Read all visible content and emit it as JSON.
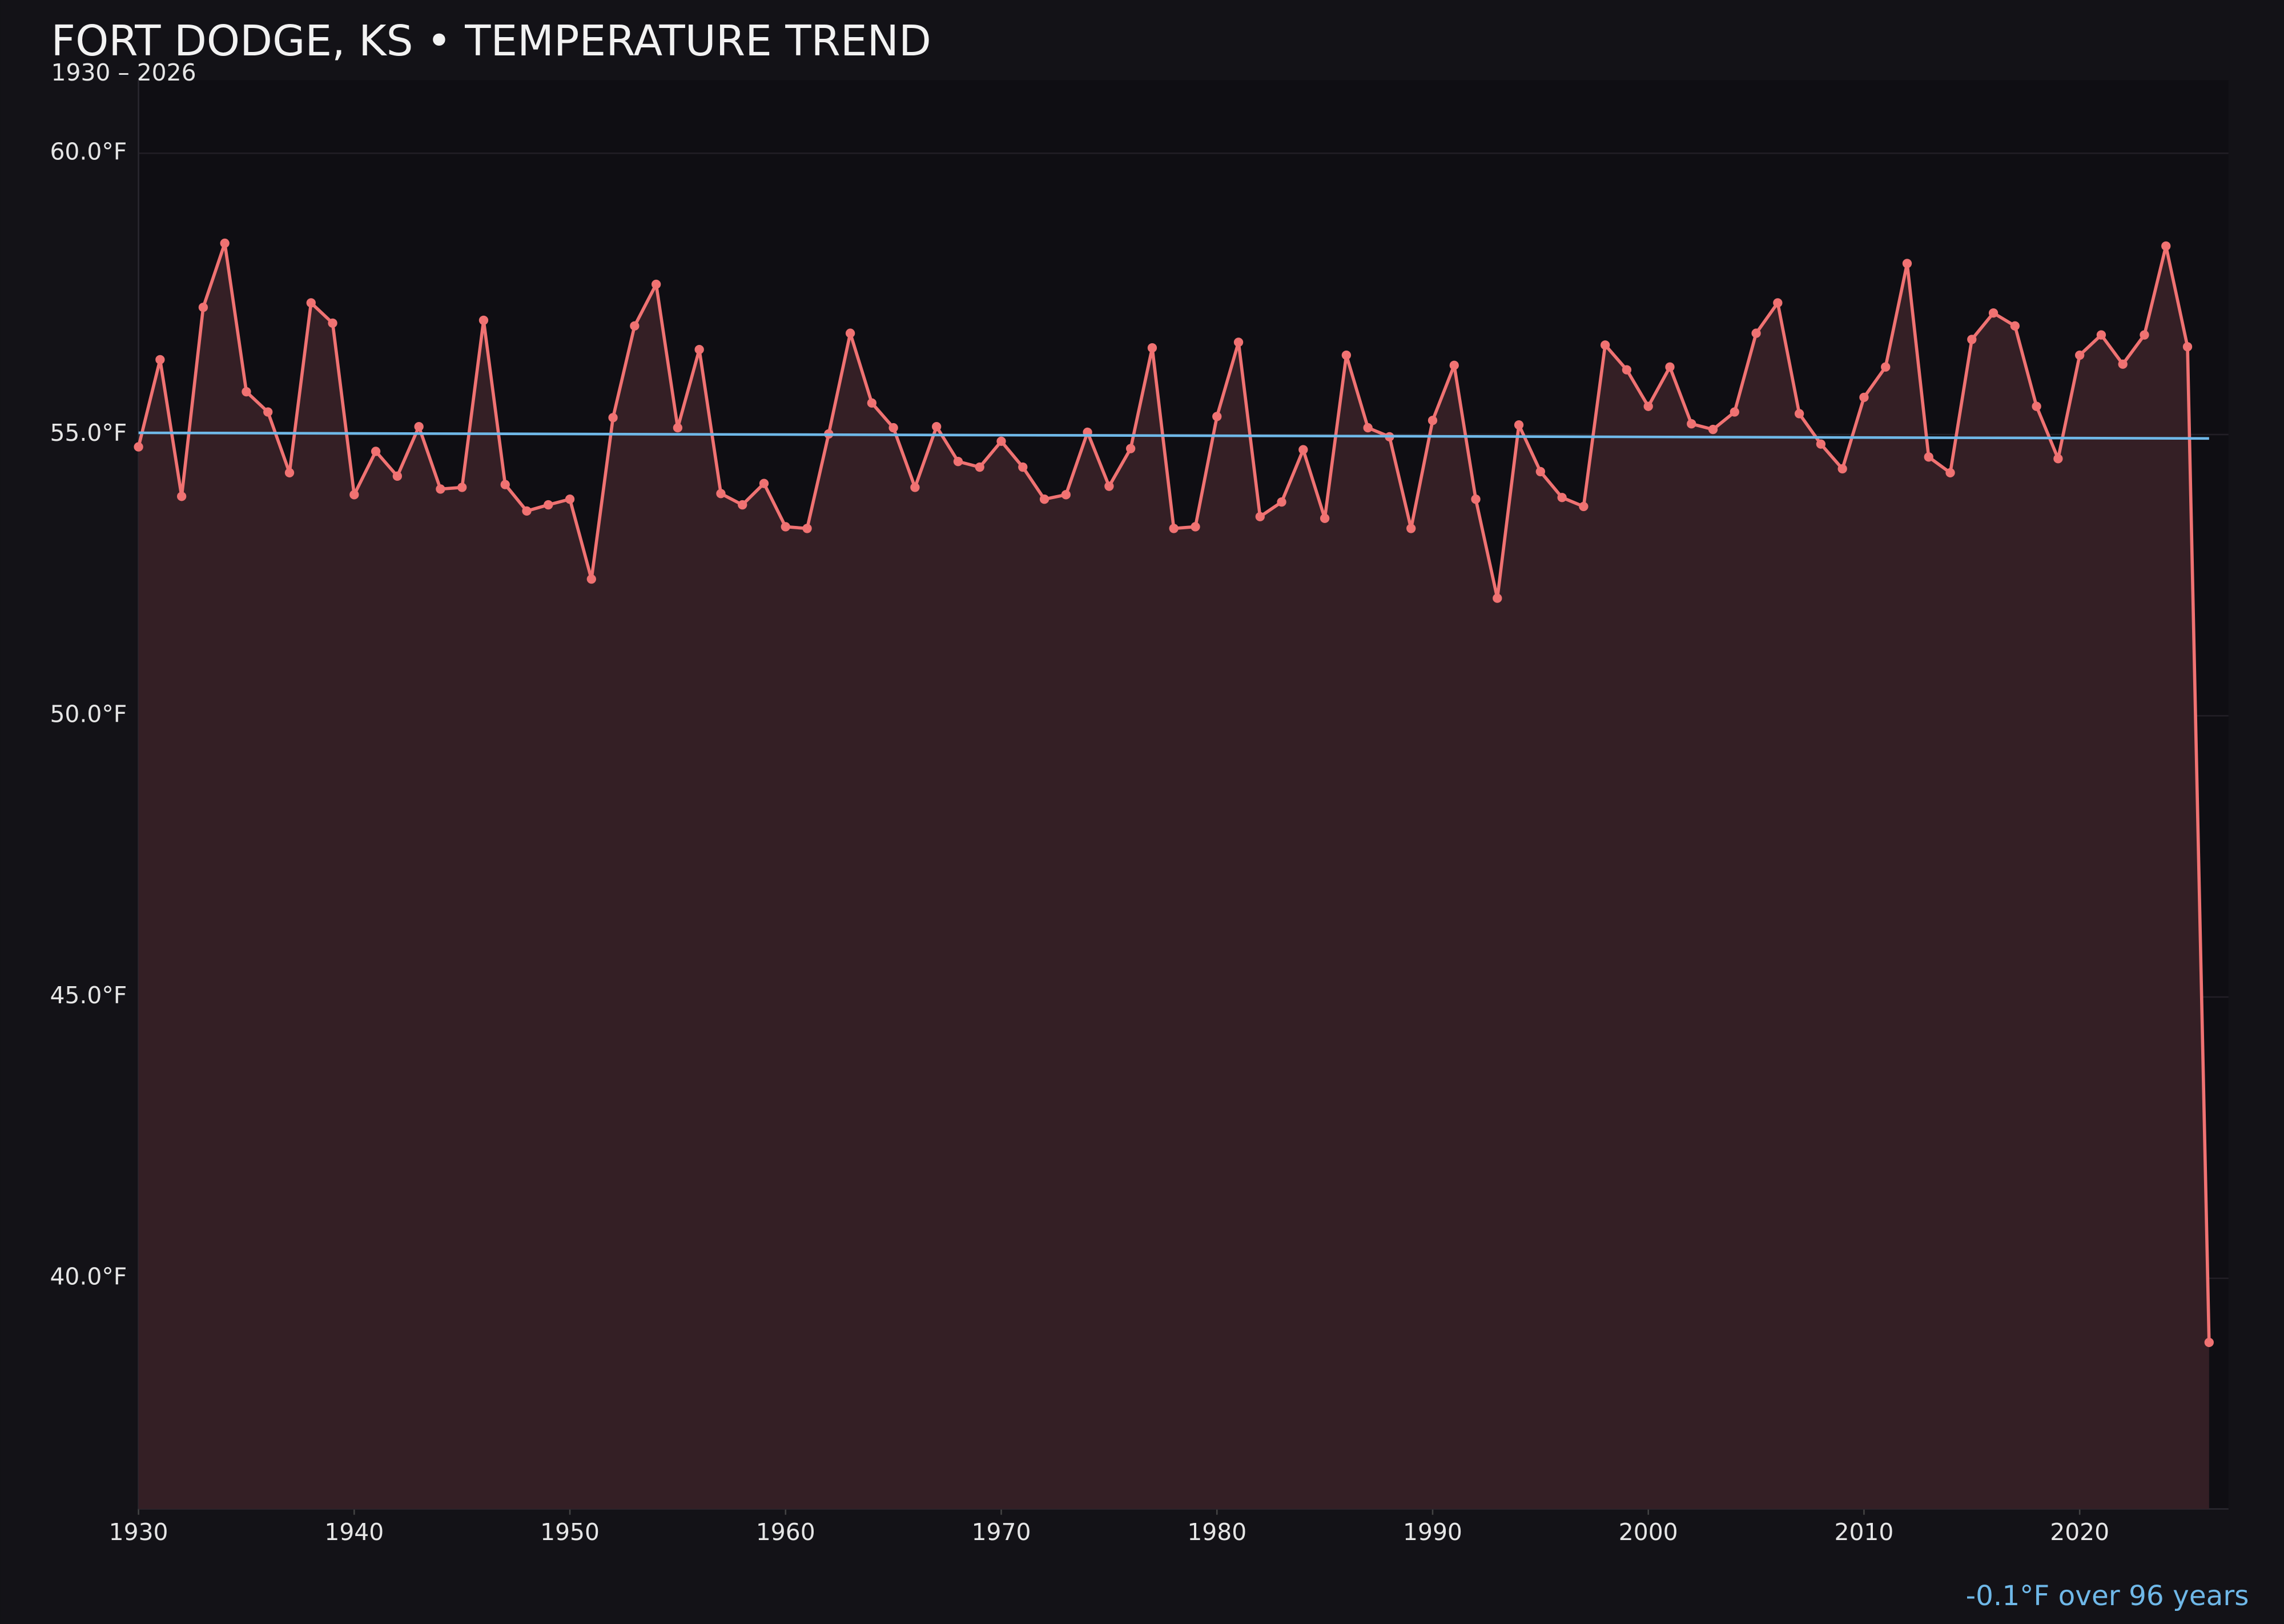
{
  "chart_data": {
    "type": "line",
    "title": "FORT DODGE, KS • TEMPERATURE TREND",
    "subtitle": "1930 – 2026",
    "annotation": "-0.1°F over 96 years",
    "x": [
      1930,
      1931,
      1932,
      1933,
      1934,
      1935,
      1936,
      1937,
      1938,
      1939,
      1940,
      1941,
      1942,
      1943,
      1944,
      1945,
      1946,
      1947,
      1948,
      1949,
      1950,
      1951,
      1952,
      1953,
      1954,
      1955,
      1956,
      1957,
      1958,
      1959,
      1960,
      1961,
      1962,
      1963,
      1964,
      1965,
      1966,
      1967,
      1968,
      1969,
      1970,
      1971,
      1972,
      1973,
      1974,
      1975,
      1976,
      1977,
      1978,
      1979,
      1980,
      1981,
      1982,
      1983,
      1984,
      1985,
      1986,
      1987,
      1988,
      1989,
      1990,
      1991,
      1992,
      1993,
      1994,
      1995,
      1996,
      1997,
      1998,
      1999,
      2000,
      2001,
      2002,
      2003,
      2004,
      2005,
      2006,
      2007,
      2008,
      2009,
      2010,
      2011,
      2012,
      2013,
      2014,
      2015,
      2016,
      2017,
      2018,
      2019,
      2020,
      2021,
      2022,
      2023,
      2024,
      2025,
      2026
    ],
    "series": [
      {
        "color": "#f07272",
        "fill_color": "#341f25",
        "values": [
          54.78,
          56.33,
          53.9,
          57.26,
          58.4,
          55.76,
          55.4,
          54.32,
          57.34,
          56.98,
          53.93,
          54.7,
          54.26,
          55.14,
          54.03,
          54.06,
          57.03,
          54.11,
          53.64,
          53.75,
          53.85,
          52.43,
          55.3,
          56.93,
          57.67,
          55.12,
          56.51,
          53.95,
          53.75,
          54.13,
          53.36,
          53.33,
          55.01,
          56.8,
          55.56,
          55.12,
          54.06,
          55.14,
          54.52,
          54.42,
          54.88,
          54.42,
          53.85,
          53.93,
          55.04,
          54.08,
          54.75,
          56.54,
          53.33,
          53.36,
          55.32,
          56.64,
          53.54,
          53.8,
          54.73,
          53.51,
          56.41,
          55.12,
          54.96,
          53.33,
          55.25,
          56.23,
          53.85,
          52.09,
          55.17,
          54.34,
          53.88,
          53.72,
          56.59,
          56.15,
          55.5,
          56.2,
          55.19,
          55.09,
          55.4,
          56.8,
          57.34,
          55.37,
          54.83,
          54.39,
          55.66,
          56.2,
          58.04,
          54.6,
          54.32,
          56.69,
          57.16,
          56.93,
          55.5,
          54.57,
          56.41,
          56.77,
          56.25,
          56.77,
          58.35,
          56.56,
          38.86
        ]
      }
    ],
    "trend": {
      "color": "#6fb8e8",
      "x": [
        1930,
        2026
      ],
      "values": [
        55.03,
        54.93
      ]
    },
    "xlim": [
      1930,
      2026.9
    ],
    "ylim": [
      35.9,
      61.3
    ],
    "xticks": [
      1930,
      1940,
      1950,
      1960,
      1970,
      1980,
      1990,
      2000,
      2010,
      2020
    ],
    "yticks": [
      {
        "value": 40,
        "label": "40.0°F"
      },
      {
        "value": 45,
        "label": "45.0°F"
      },
      {
        "value": 50,
        "label": "50.0°F"
      },
      {
        "value": 55,
        "label": "55.0°F"
      },
      {
        "value": 60,
        "label": "60.0°F"
      }
    ],
    "grid": true
  }
}
